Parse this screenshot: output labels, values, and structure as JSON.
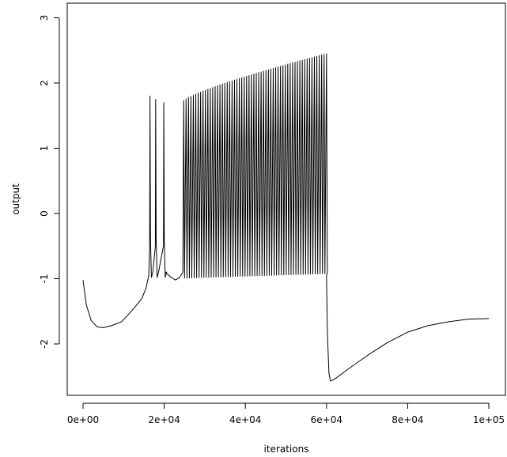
{
  "chart_data": {
    "type": "line",
    "title": "",
    "xlabel": "iterations",
    "ylabel": "output",
    "xlim": [
      0,
      100000
    ],
    "ylim": [
      -2.8,
      3.2
    ],
    "x_ticks": [
      0,
      20000,
      40000,
      60000,
      80000,
      100000
    ],
    "x_tick_labels": [
      "0e+00",
      "2e+04",
      "4e+04",
      "6e+04",
      "8e+04",
      "1e+05"
    ],
    "y_ticks": [
      -2,
      -1,
      0,
      1,
      2,
      3
    ],
    "y_tick_labels": [
      "-2",
      "-1",
      "0",
      "1",
      "2",
      "3"
    ],
    "grid": false,
    "legend": "none",
    "color": "#000000",
    "series": [
      {
        "baseline_points": [
          [
            0,
            -1.02
          ],
          [
            800,
            -1.4
          ],
          [
            2000,
            -1.64
          ],
          [
            3500,
            -1.74
          ],
          [
            5000,
            -1.75
          ],
          [
            7000,
            -1.72
          ],
          [
            9500,
            -1.66
          ],
          [
            11000,
            -1.56
          ],
          [
            13000,
            -1.42
          ],
          [
            14500,
            -1.3
          ],
          [
            15500,
            -1.15
          ],
          [
            16200,
            -0.95
          ]
        ],
        "spikes_phase1": {
          "x": [
            16500,
            17900,
            19900
          ],
          "peak": [
            1.8,
            1.75,
            1.7
          ],
          "trough": -0.98
        },
        "pause": [
          [
            20300,
            -0.9
          ],
          [
            21500,
            -0.97
          ],
          [
            22800,
            -1.02
          ],
          [
            23800,
            -0.98
          ],
          [
            24600,
            -0.9
          ]
        ],
        "spikes_phase2": {
          "x_start": 24800,
          "x_end": 60000,
          "count": 60,
          "peak_start": 1.73,
          "peak_end": 2.45,
          "trough_start": -0.99,
          "trough_end": -0.92
        },
        "decay_points": [
          [
            60000,
            -0.95
          ],
          [
            60200,
            -1.8
          ],
          [
            60600,
            -2.45
          ],
          [
            61000,
            -2.57
          ],
          [
            62000,
            -2.54
          ],
          [
            65000,
            -2.4
          ],
          [
            70000,
            -2.18
          ],
          [
            75000,
            -1.98
          ],
          [
            80000,
            -1.82
          ],
          [
            85000,
            -1.72
          ],
          [
            90000,
            -1.66
          ],
          [
            95000,
            -1.62
          ],
          [
            100000,
            -1.61
          ]
        ]
      }
    ]
  }
}
